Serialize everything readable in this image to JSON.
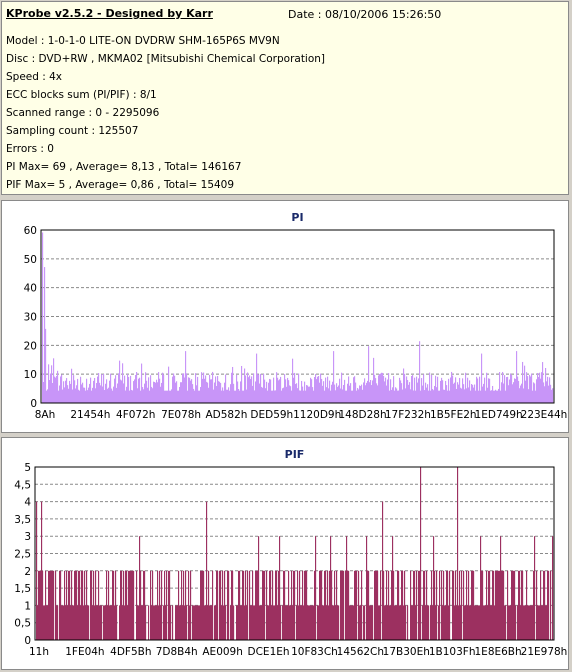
{
  "info": {
    "title": "KProbe v2.5.2 - Designed by Karr",
    "date": "Date : 08/10/2006 15:26:50",
    "lines": [
      "Model : 1-0-1-0 LITE-ON DVDRW SHM-165P6S MV9N",
      "Disc : DVD+RW , MKMA02 [Mitsubishi Chemical Corporation]",
      "Speed : 4x",
      "ECC blocks sum (PI/PIF) : 8/1",
      "Scanned range : 0 - 2295096",
      "Sampling count : 125507",
      "Errors : 0",
      "PI Max= 69 , Average= 8,13 , Total= 146167",
      "PIF Max= 5 , Average= 0,86 , Total= 15409"
    ]
  },
  "chart_data": [
    {
      "type": "bar",
      "title": "PI",
      "color": "#c895f8",
      "ylim": [
        0,
        70
      ],
      "yticks": [
        "0",
        "10",
        "20",
        "30",
        "40",
        "50",
        "60"
      ],
      "xticks": [
        "8Ah",
        "21454h",
        "4F072h",
        "7E078h",
        "AD582h",
        "DED59h",
        "1120D9h",
        "148D28h",
        "17F232h",
        "1B5FE2h",
        "1ED749h",
        "223E44h"
      ],
      "grid": true,
      "max": 69,
      "average": 8.13,
      "typical_range": [
        5,
        20
      ],
      "spikes": [
        [
          0.0,
          69
        ],
        [
          0.003,
          55
        ],
        [
          0.006,
          30
        ],
        [
          0.28,
          21
        ],
        [
          0.42,
          20
        ],
        [
          0.57,
          21
        ],
        [
          0.64,
          23
        ],
        [
          0.74,
          25
        ],
        [
          0.86,
          20
        ],
        [
          0.93,
          21
        ]
      ]
    },
    {
      "type": "bar",
      "title": "PIF",
      "color": "#9c3060",
      "ylim": [
        0,
        5
      ],
      "yticks": [
        "0",
        "0,5",
        "1",
        "1,5",
        "2",
        "2,5",
        "3",
        "3,5",
        "4",
        "4,5",
        "5"
      ],
      "xticks": [
        "11h",
        "1FE04h",
        "4DF5Bh",
        "7D8B4h",
        "AE009h",
        "DCE1Eh",
        "10F83Ch",
        "14562Ch",
        "17B30Eh",
        "1B103Fh",
        "1E8E6Bh",
        "21E978h"
      ],
      "grid": true,
      "max": 5,
      "average": 0.86,
      "spikes": [
        [
          0.0,
          4
        ],
        [
          0.01,
          4
        ],
        [
          0.2,
          3
        ],
        [
          0.33,
          4
        ],
        [
          0.43,
          3
        ],
        [
          0.47,
          3
        ],
        [
          0.54,
          3
        ],
        [
          0.57,
          3
        ],
        [
          0.6,
          3
        ],
        [
          0.64,
          3
        ],
        [
          0.67,
          4
        ],
        [
          0.69,
          3
        ],
        [
          0.745,
          5
        ],
        [
          0.77,
          3
        ],
        [
          0.815,
          5
        ],
        [
          0.86,
          3
        ],
        [
          0.9,
          3
        ],
        [
          0.965,
          3
        ],
        [
          1.0,
          3
        ]
      ]
    }
  ]
}
